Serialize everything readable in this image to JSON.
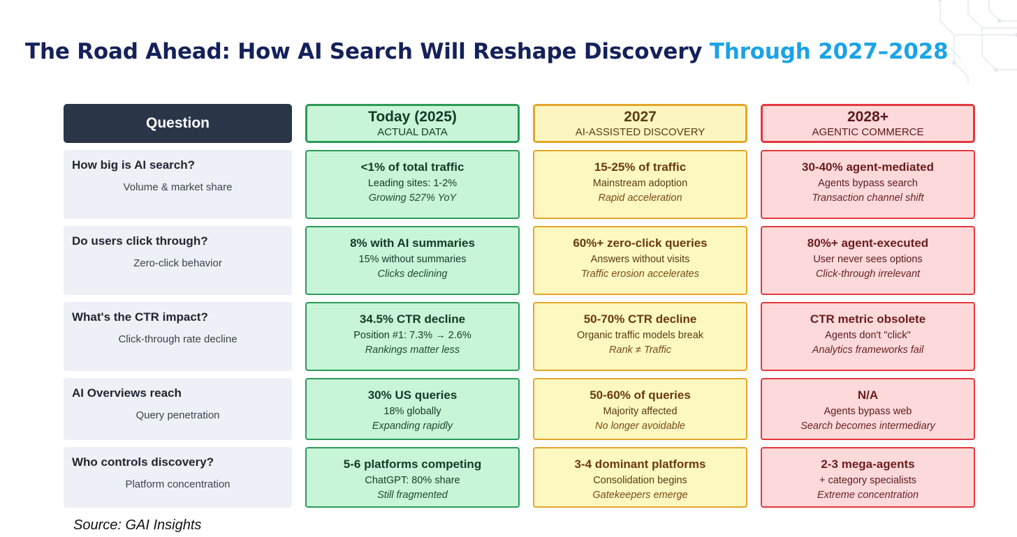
{
  "title": {
    "main": "The Road Ahead: How AI Search Will Reshape Discovery",
    "accent": "Through 2027–2028"
  },
  "header": {
    "question_label": "Question",
    "columns": [
      {
        "title": "Today (2025)",
        "subtitle": "ACTUAL DATA"
      },
      {
        "title": "2027",
        "subtitle": "AI-ASSISTED DISCOVERY"
      },
      {
        "title": "2028+",
        "subtitle": "AGENTIC COMMERCE"
      }
    ]
  },
  "rows": [
    {
      "question": "How big is AI search?",
      "sub": "Volume & market share",
      "cells": [
        {
          "main": "<1% of total traffic",
          "detail": "Leading sites: 1-2%",
          "note": "Growing 527% YoY"
        },
        {
          "main": "15-25% of traffic",
          "detail": "Mainstream adoption",
          "note": "Rapid acceleration"
        },
        {
          "main": "30-40% agent-mediated",
          "detail": "Agents bypass search",
          "note": "Transaction channel shift"
        }
      ]
    },
    {
      "question": "Do users click through?",
      "sub": "Zero-click behavior",
      "cells": [
        {
          "main": "8% with AI summaries",
          "detail": "15% without summaries",
          "note": "Clicks declining"
        },
        {
          "main": "60%+ zero-click queries",
          "detail": "Answers without visits",
          "note": "Traffic erosion accelerates"
        },
        {
          "main": "80%+ agent-executed",
          "detail": "User never sees options",
          "note": "Click-through irrelevant"
        }
      ]
    },
    {
      "question": "What's the CTR impact?",
      "sub": "Click-through rate decline",
      "cells": [
        {
          "main": "34.5% CTR decline",
          "detail": "Position #1: 7.3% → 2.6%",
          "note": "Rankings matter less"
        },
        {
          "main": "50-70% CTR decline",
          "detail": "Organic traffic models break",
          "note": "Rank ≠ Traffic"
        },
        {
          "main": "CTR metric obsolete",
          "detail": "Agents don't \"click\"",
          "note": "Analytics frameworks fail"
        }
      ]
    },
    {
      "question": "AI Overviews reach",
      "sub": "Query penetration",
      "cells": [
        {
          "main": "30% US queries",
          "detail": "18% globally",
          "note": "Expanding rapidly"
        },
        {
          "main": "50-60% of queries",
          "detail": "Majority affected",
          "note": "No longer avoidable"
        },
        {
          "main": "N/A",
          "detail": "Agents bypass web",
          "note": "Search becomes intermediary"
        }
      ]
    },
    {
      "question": "Who controls discovery?",
      "sub": "Platform concentration",
      "cells": [
        {
          "main": "5-6 platforms competing",
          "detail": "ChatGPT: 80% share",
          "note": "Still fragmented"
        },
        {
          "main": "3-4 dominant platforms",
          "detail": "Consolidation begins",
          "note": "Gatekeepers emerge"
        },
        {
          "main": "2-3 mega-agents",
          "detail": "+ category specialists",
          "note": "Extreme concentration"
        }
      ]
    }
  ],
  "source": "Source: GAI Insights"
}
